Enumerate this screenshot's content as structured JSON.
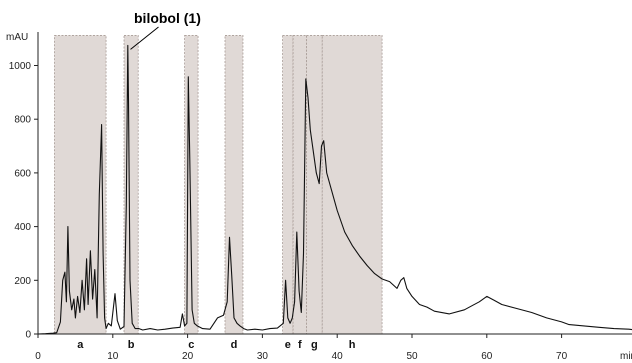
{
  "chart_data": {
    "type": "line",
    "title": "",
    "ylabel": "mAU",
    "xlabel": "min",
    "xlim": [
      0,
      80
    ],
    "ylim": [
      -30,
      1140
    ],
    "x_ticks": [
      0,
      10,
      20,
      30,
      40,
      50,
      60,
      70
    ],
    "y_ticks": [
      0,
      200,
      400,
      600,
      800,
      1000
    ],
    "grid": false,
    "colors": {
      "trace": "#111111",
      "fraction_fill": "#e0d9d6",
      "fraction_border": "#a89c97"
    },
    "annotation": {
      "text": "bilobol (1)",
      "x": 12.1,
      "y": 1075
    },
    "fractions": [
      {
        "label": "a",
        "start": 2.2,
        "end": 9.1
      },
      {
        "label": "b",
        "start": 11.5,
        "end": 13.4
      },
      {
        "label": "c",
        "start": 19.6,
        "end": 21.4
      },
      {
        "label": "d",
        "start": 25.0,
        "end": 27.4
      },
      {
        "label": "e",
        "start": 32.7,
        "end": 34.1
      },
      {
        "label": "f",
        "start": 34.1,
        "end": 35.9
      },
      {
        "label": "g",
        "start": 35.9,
        "end": 38.0
      },
      {
        "label": "h",
        "start": 38.0,
        "end": 46.0
      }
    ],
    "series": [
      {
        "x": [
          0,
          1,
          2,
          2.5,
          3,
          3.3,
          3.6,
          3.8,
          4.0,
          4.2,
          4.5,
          4.8,
          5.0,
          5.3,
          5.6,
          5.9,
          6.2,
          6.5,
          6.7,
          7.0,
          7.3,
          7.6,
          7.9,
          8.2,
          8.5,
          8.7,
          8.9,
          9.1,
          9.4,
          9.8,
          10.3,
          10.6,
          11.0,
          11.5,
          11.8,
          12.0,
          12.1,
          12.3,
          12.6,
          13.0,
          13.5,
          14,
          15,
          16,
          17,
          18,
          19,
          19.3,
          19.6,
          19.9,
          20.1,
          20.3,
          20.6,
          20.9,
          21.3,
          22,
          23,
          24,
          24.8,
          25.3,
          25.6,
          25.9,
          26.2,
          26.6,
          27.0,
          27.5,
          28,
          29,
          30,
          31,
          32,
          32.8,
          33.1,
          33.4,
          33.7,
          34.0,
          34.3,
          34.6,
          34.9,
          35.2,
          35.5,
          35.8,
          36.1,
          36.4,
          36.8,
          37.2,
          37.6,
          37.9,
          38.2,
          38.6,
          39.0,
          40,
          41,
          42,
          43,
          44,
          45,
          46,
          47,
          48,
          48.5,
          48.9,
          49.3,
          50,
          51,
          52,
          53,
          55,
          57,
          58,
          59,
          60,
          61,
          62,
          64,
          66,
          68,
          70,
          71,
          73,
          75,
          77,
          79,
          80
        ],
        "y": [
          0,
          1,
          3,
          5,
          45,
          200,
          230,
          120,
          400,
          160,
          90,
          130,
          60,
          140,
          80,
          200,
          90,
          280,
          110,
          310,
          130,
          240,
          60,
          520,
          780,
          300,
          60,
          20,
          40,
          30,
          150,
          50,
          18,
          28,
          480,
          1075,
          870,
          200,
          40,
          20,
          20,
          15,
          20,
          15,
          18,
          22,
          25,
          75,
          30,
          40,
          958,
          650,
          90,
          40,
          30,
          20,
          18,
          60,
          70,
          120,
          360,
          220,
          60,
          40,
          30,
          20,
          15,
          18,
          15,
          20,
          22,
          40,
          200,
          60,
          40,
          60,
          120,
          380,
          160,
          80,
          300,
          950,
          880,
          760,
          680,
          600,
          560,
          700,
          720,
          600,
          560,
          460,
          380,
          330,
          290,
          255,
          225,
          205,
          195,
          170,
          200,
          210,
          170,
          140,
          110,
          100,
          85,
          75,
          90,
          105,
          120,
          140,
          125,
          110,
          95,
          80,
          60,
          45,
          35,
          30,
          25,
          20,
          18,
          15
        ]
      }
    ]
  }
}
